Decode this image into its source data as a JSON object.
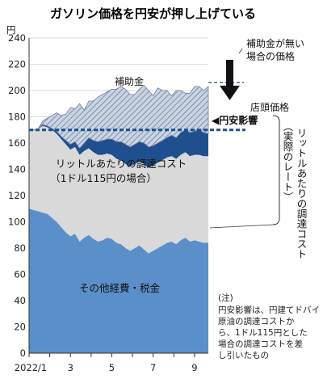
{
  "title": "ガソリン価格を円安が押し上げている",
  "chart_data": {
    "type": "area",
    "y_unit": "円",
    "ylim": [
      0,
      240
    ],
    "yticks": [
      0,
      20,
      40,
      60,
      80,
      100,
      120,
      140,
      160,
      180,
      200,
      220,
      240
    ],
    "xlim": [
      0,
      39
    ],
    "xticks": [
      {
        "x": 0,
        "label": "2022/1"
      },
      {
        "x": 9,
        "label": "3"
      },
      {
        "x": 18,
        "label": "5"
      },
      {
        "x": 27,
        "label": "7"
      },
      {
        "x": 36,
        "label": "9"
      }
    ],
    "x": [
      0,
      1,
      2,
      3,
      4,
      5,
      6,
      7,
      8,
      9,
      10,
      11,
      12,
      13,
      14,
      15,
      16,
      17,
      18,
      19,
      20,
      21,
      22,
      23,
      24,
      25,
      26,
      27,
      28,
      29,
      30,
      31,
      32,
      33,
      34,
      35,
      36,
      37,
      38,
      39
    ],
    "series": [
      {
        "name": "その他経費・税金",
        "color": "#5b8fc9",
        "values": [
          110,
          109,
          108,
          107,
          106,
          103,
          100,
          96,
          92,
          89,
          91,
          85,
          88,
          90,
          87,
          85,
          86,
          88,
          87,
          84,
          83,
          80,
          78,
          80,
          82,
          79,
          76,
          78,
          80,
          82,
          84,
          85,
          83,
          86,
          88,
          85,
          86,
          85,
          84,
          84
        ]
      },
      {
        "name": "リットルあたりの調達コスト（1ドル115円の場合）",
        "color": "#d9d9d9",
        "values": [
          60,
          61,
          63,
          66,
          66,
          67,
          67,
          67,
          67,
          66,
          66,
          66,
          66,
          66,
          66,
          66,
          65,
          64,
          64,
          64,
          64,
          64,
          64,
          64,
          64,
          65,
          65,
          65,
          65,
          65,
          65,
          65,
          65,
          65,
          65,
          65,
          65,
          66,
          66,
          66
        ]
      },
      {
        "name": "円安影響",
        "color": "#1f4f8f",
        "values": [
          0,
          0,
          0,
          1,
          1,
          1,
          2,
          2,
          3,
          4,
          4,
          5,
          6,
          8,
          9,
          10,
          11,
          11,
          12,
          13,
          14,
          15,
          15,
          15,
          15,
          16,
          16,
          15,
          15,
          15,
          15,
          16,
          16,
          17,
          17,
          18,
          18,
          19,
          18,
          17
        ]
      },
      {
        "name": "補助金",
        "color": "#9eaec6",
        "hatched": true,
        "values": [
          0,
          0,
          0,
          3,
          6,
          10,
          14,
          16,
          20,
          28,
          25,
          34,
          25,
          28,
          30,
          34,
          35,
          36,
          38,
          40,
          42,
          42,
          40,
          38,
          40,
          44,
          43,
          38,
          42,
          38,
          36,
          30,
          36,
          32,
          28,
          30,
          34,
          33,
          32,
          36
        ]
      }
    ],
    "total_with_subsidy_line": "補助金が無い場合の価格",
    "retail_price_line": "店頭価格",
    "retail_price_level": 170,
    "subsidy_free_level": 206
  },
  "labels": {
    "subsidy": "補助金",
    "yen_effect": "◀円安影響",
    "cost_line1": "リットルあたりの調達コスト",
    "cost_line2": "（1ドル115円の場合）",
    "other": "その他経費・税金",
    "no_subsidy_line1": "補助金が無い",
    "no_subsidy_line2": "場合の価格",
    "retail": "店頭価格",
    "vertical_label": "リットルあたりの調達コスト",
    "vertical_paren": "（実際のレート）"
  },
  "note": {
    "head": "(注)",
    "lines": [
      "円安影響は、円建てドバイ",
      "原油の調達コストか",
      "ら、1ドル115円とした",
      "場合の調達コストを差",
      "し引いたもの"
    ]
  }
}
